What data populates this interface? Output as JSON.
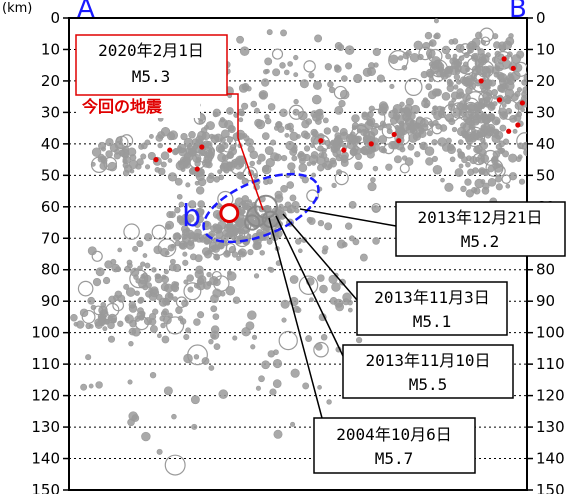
{
  "chart_data": {
    "type": "scatter",
    "title": "",
    "ylabel": "(km)",
    "ylim": [
      0,
      150
    ],
    "grid": true,
    "section_start": "A",
    "section_end": "B",
    "yticks": [
      0,
      10,
      20,
      30,
      40,
      50,
      60,
      70,
      80,
      90,
      100,
      110,
      120,
      130,
      140,
      150
    ],
    "region_label": "b",
    "callouts": [
      {
        "date": "2020年2月1日",
        "mag": "M5.3",
        "note": "今回の地震",
        "style": "red"
      },
      {
        "date": "2013年12月21日",
        "mag": "M5.2",
        "note": "",
        "style": "black"
      },
      {
        "date": "2013年11月3日",
        "mag": "M5.1",
        "note": "",
        "style": "black"
      },
      {
        "date": "2013年11月10日",
        "mag": "M5.5",
        "note": "",
        "style": "black"
      },
      {
        "date": "2004年10月6日",
        "mag": "M5.7",
        "note": "",
        "style": "black"
      }
    ],
    "highlighted_events": [
      {
        "x": 0.35,
        "depth": 62,
        "mag": 5.3,
        "color": "red"
      },
      {
        "x": 0.43,
        "depth": 60,
        "mag": 5.7,
        "color": "gray"
      },
      {
        "x": 0.41,
        "depth": 63,
        "mag": 5.5,
        "color": "gray"
      },
      {
        "x": 0.4,
        "depth": 65,
        "mag": 5.1,
        "color": "gray"
      },
      {
        "x": 0.44,
        "depth": 64,
        "mag": 5.2,
        "color": "gray"
      }
    ],
    "clusters": [
      {
        "x": 0.34,
        "depth": 68,
        "sx": 0.07,
        "sy": 4,
        "n": 140
      },
      {
        "x": 0.42,
        "depth": 62,
        "sx": 0.05,
        "sy": 3,
        "n": 60
      },
      {
        "x": 0.29,
        "depth": 44,
        "sx": 0.06,
        "sy": 5,
        "n": 130
      },
      {
        "x": 0.61,
        "depth": 40,
        "sx": 0.09,
        "sy": 5,
        "n": 150
      },
      {
        "x": 0.73,
        "depth": 34,
        "sx": 0.05,
        "sy": 4,
        "n": 70
      },
      {
        "x": 0.91,
        "depth": 30,
        "sx": 0.06,
        "sy": 14,
        "n": 340
      },
      {
        "x": 0.85,
        "depth": 14,
        "sx": 0.05,
        "sy": 4,
        "n": 60
      },
      {
        "x": 0.11,
        "depth": 44,
        "sx": 0.04,
        "sy": 3,
        "n": 40
      },
      {
        "x": 0.19,
        "depth": 85,
        "sx": 0.08,
        "sy": 7,
        "n": 110
      },
      {
        "x": 0.12,
        "depth": 96,
        "sx": 0.06,
        "sy": 2,
        "n": 40
      },
      {
        "x": 0.45,
        "depth": 35,
        "sx": 0.12,
        "sy": 20,
        "n": 120
      },
      {
        "x": 0.5,
        "depth": 90,
        "sx": 0.14,
        "sy": 18,
        "n": 90
      },
      {
        "x": 0.5,
        "depth": 20,
        "sx": 0.2,
        "sy": 8,
        "n": 60
      },
      {
        "x": 0.25,
        "depth": 110,
        "sx": 0.15,
        "sy": 20,
        "n": 50
      }
    ],
    "red_events": [
      {
        "x": 0.29,
        "depth": 41
      },
      {
        "x": 0.22,
        "depth": 42
      },
      {
        "x": 0.19,
        "depth": 45
      },
      {
        "x": 0.28,
        "depth": 48
      },
      {
        "x": 0.55,
        "depth": 39
      },
      {
        "x": 0.6,
        "depth": 42
      },
      {
        "x": 0.66,
        "depth": 40
      },
      {
        "x": 0.71,
        "depth": 37
      },
      {
        "x": 0.72,
        "depth": 39
      },
      {
        "x": 0.95,
        "depth": 13
      },
      {
        "x": 0.97,
        "depth": 16
      },
      {
        "x": 0.94,
        "depth": 26
      },
      {
        "x": 0.99,
        "depth": 27
      },
      {
        "x": 0.98,
        "depth": 34
      },
      {
        "x": 0.96,
        "depth": 36
      },
      {
        "x": 0.9,
        "depth": 20
      }
    ],
    "colors": {
      "events": "#9a9a9a",
      "highlight": "#e00000",
      "region": "#1a1aff",
      "grid": "#000000"
    }
  }
}
